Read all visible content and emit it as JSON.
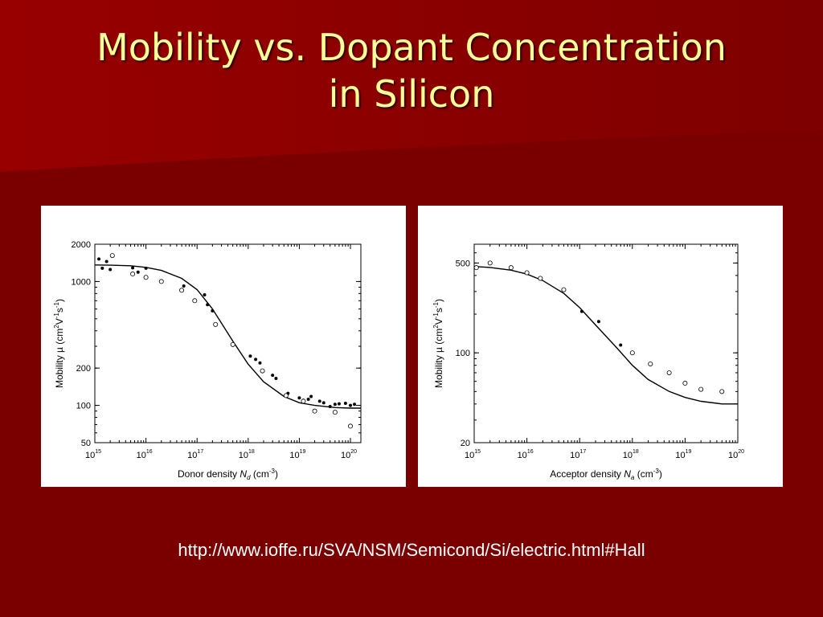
{
  "slide": {
    "title_line1": "Mobility vs. Dopant Concentration",
    "title_line2": "in Silicon",
    "source_url": "http://www.ioffe.ru/SVA/NSM/Semicond/Si/electric.html#Hall",
    "colors": {
      "background": "#7a0000",
      "title": "#ffff99",
      "url": "#ffffff",
      "panel": "#ffffff"
    }
  },
  "chart_data": [
    {
      "type": "scatter",
      "xlabel": "Donor density N_d (cm^-3)",
      "xlabel_main": "Donor density ",
      "xlabel_var": "N",
      "xlabel_sub": "d",
      "xlabel_unit_pre": " (cm",
      "xlabel_unit_sup": "-3",
      "xlabel_unit_post": ")",
      "ylabel": "Mobility µ (cm^2 V^-1 s^-1)",
      "x_scale": "log",
      "y_scale": "log",
      "xlim": [
        1000000000000000.0,
        1.6e+20
      ],
      "ylim": [
        50,
        2000
      ],
      "x_tick_exponents": [
        15,
        16,
        17,
        18,
        19,
        20
      ],
      "y_ticks": [
        50,
        100,
        200,
        1000,
        2000
      ],
      "y_tick_labels": [
        "50",
        "100",
        "200",
        "1000",
        "2000"
      ],
      "grid": false,
      "curve": {
        "x": [
          1000000000000000.0,
          2000000000000000.0,
          5000000000000000.0,
          1e+16,
          2e+16,
          5e+16,
          1e+17,
          2e+17,
          5e+17,
          1e+18,
          2e+18,
          5e+18,
          1e+19,
          2e+19,
          5e+19,
          1e+20,
          1.6e+20
        ],
        "y": [
          1360,
          1355,
          1340,
          1300,
          1230,
          1060,
          860,
          600,
          330,
          215,
          155,
          118,
          105,
          100,
          96,
          95,
          95
        ]
      },
      "filled_points": {
        "x": [
          1200000000000000.0,
          1400000000000000.0,
          1700000000000000.0,
          2000000000000000.0,
          5500000000000000.0,
          7000000000000000.0,
          1e+16,
          5.5e+16,
          1.4e+17,
          1.6e+17,
          2e+17,
          1.1e+18,
          1.4e+18,
          1.7e+18,
          3e+18,
          3.5e+18,
          6e+18,
          1e+19,
          1.2e+19,
          1.5e+19,
          1.7e+19,
          2.5e+19,
          3e+19,
          4e+19,
          5e+19,
          6e+19,
          8e+19,
          1e+20,
          1.2e+20
        ],
        "y": [
          1520,
          1280,
          1450,
          1250,
          1290,
          1190,
          1280,
          920,
          780,
          650,
          580,
          250,
          235,
          220,
          175,
          165,
          125,
          115,
          110,
          112,
          118,
          108,
          105,
          98,
          102,
          103,
          104,
          100,
          102
        ]
      },
      "hollow_points": {
        "x": [
          2200000000000000.0,
          5500000000000000.0,
          1e+16,
          2e+16,
          5e+16,
          9e+16,
          2.3e+17,
          5e+17,
          1.9e+18,
          5.5e+18,
          1.2e+19,
          2e+19,
          5e+19,
          1e+20
        ],
        "y": [
          1620,
          1150,
          1080,
          1000,
          850,
          700,
          450,
          310,
          190,
          120,
          108,
          90,
          88,
          68
        ]
      }
    },
    {
      "type": "scatter",
      "xlabel": "Acceptor density N_a (cm^-3)",
      "xlabel_main": "Acceptor density ",
      "xlabel_var": "N",
      "xlabel_sub": "a",
      "xlabel_unit_pre": " (cm",
      "xlabel_unit_sup": "-3",
      "xlabel_unit_post": ")",
      "ylabel": "Mobility µ (cm^2 V^-1 s^-1)",
      "x_scale": "log",
      "y_scale": "log",
      "xlim": [
        1000000000000000.0,
        1e+20
      ],
      "ylim": [
        20,
        700
      ],
      "x_tick_exponents": [
        15,
        16,
        17,
        18,
        19,
        20
      ],
      "y_ticks": [
        20,
        100,
        500
      ],
      "y_tick_labels": [
        "20",
        "100",
        "500"
      ],
      "grid": false,
      "curve": {
        "x": [
          1000000000000000.0,
          2000000000000000.0,
          5000000000000000.0,
          1e+16,
          2e+16,
          5e+16,
          1e+17,
          2e+17,
          5e+17,
          1e+18,
          2e+18,
          5e+18,
          1e+19,
          2e+19,
          5e+19,
          1e+20
        ],
        "y": [
          470,
          462,
          440,
          410,
          365,
          290,
          225,
          165,
          110,
          80,
          62,
          50,
          45,
          42,
          40,
          40
        ]
      },
      "filled_points": {
        "x": [
          1.1e+17,
          2.3e+17,
          6e+17
        ],
        "y": [
          210,
          175,
          115
        ]
      },
      "hollow_points": {
        "x": [
          1100000000000000.0,
          2000000000000000.0,
          5000000000000000.0,
          1e+16,
          1.8e+16,
          5e+16,
          1e+18,
          2.2e+18,
          5e+18,
          1e+19,
          2e+19,
          5e+19
        ],
        "y": [
          460,
          500,
          460,
          420,
          380,
          310,
          100,
          82,
          70,
          58,
          52,
          50
        ]
      }
    }
  ]
}
